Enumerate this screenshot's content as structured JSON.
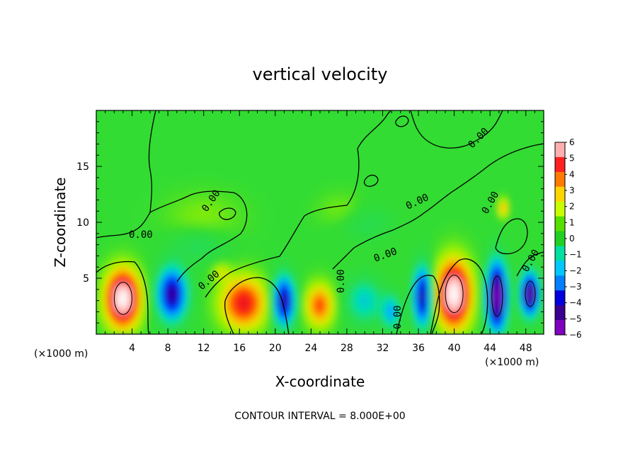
{
  "chart_data": {
    "type": "heatmap",
    "title": "vertical velocity",
    "xlabel": "X-coordinate",
    "ylabel": "Z-coordinate",
    "x_unit": "(×1000 m)",
    "x_ticks": [
      "4",
      "8",
      "12",
      "16",
      "20",
      "24",
      "28",
      "32",
      "36",
      "40",
      "44",
      "48"
    ],
    "x_tick_values": [
      4,
      8,
      12,
      16,
      20,
      24,
      28,
      32,
      36,
      40,
      44,
      48
    ],
    "y_ticks": [
      "5",
      "10",
      "15"
    ],
    "y_tick_values": [
      5,
      10,
      15
    ],
    "xlim": [
      0,
      50
    ],
    "ylim": [
      0,
      20
    ],
    "colorbar": {
      "labels": [
        "6",
        "5",
        "4",
        "3",
        "2",
        "1",
        "0",
        "−1",
        "−2",
        "−3",
        "−4",
        "−5",
        "−6"
      ],
      "min": -6,
      "max": 6,
      "colors": [
        "#ffb0b0",
        "#ff2020",
        "#ff7a00",
        "#ffd500",
        "#c8ff00",
        "#55e000",
        "#22d022",
        "#00e0a0",
        "#00c8ff",
        "#0080ff",
        "#0000dd",
        "#3a0090",
        "#8000c0"
      ]
    },
    "contour_labels": [
      "0.00",
      "0.00",
      "0.00",
      "0.00",
      "0.00",
      "0.00",
      "0.00",
      "0.00",
      "0.00",
      "0.00"
    ],
    "features": [
      {
        "x": 3.0,
        "z": 3.2,
        "w": 8,
        "rx": 1.8,
        "rz": 2.4
      },
      {
        "x": 16.5,
        "z": 2.8,
        "w": 5,
        "rx": 2.4,
        "rz": 2.2
      },
      {
        "x": 25.0,
        "z": 2.6,
        "w": 4,
        "rx": 1.5,
        "rz": 1.8
      },
      {
        "x": 40.0,
        "z": 3.6,
        "w": 8,
        "rx": 1.8,
        "rz": 2.8
      },
      {
        "x": 45.5,
        "z": 11.3,
        "w": 3,
        "rx": 0.5,
        "rz": 0.8
      },
      {
        "x": 14.0,
        "z": 5.6,
        "w": 1.5,
        "rx": 1.0,
        "rz": 0.8
      },
      {
        "x": 12.0,
        "z": 10.5,
        "w": 0.8,
        "rx": 4.0,
        "rz": 2.0
      },
      {
        "x": 27.5,
        "z": 11.0,
        "w": 0.8,
        "rx": 2.5,
        "rz": 1.5
      },
      {
        "x": 8.5,
        "z": 3.6,
        "w": -6,
        "rx": 1.6,
        "rz": 2.3
      },
      {
        "x": 21.0,
        "z": 3.0,
        "w": -6,
        "rx": 1.2,
        "rz": 2.2
      },
      {
        "x": 36.5,
        "z": 3.4,
        "w": -6,
        "rx": 1.0,
        "rz": 2.6
      },
      {
        "x": 44.8,
        "z": 3.4,
        "w": -8,
        "rx": 1.1,
        "rz": 3.0
      },
      {
        "x": 48.5,
        "z": 3.6,
        "w": -7,
        "rx": 1.0,
        "rz": 1.9
      },
      {
        "x": 30.0,
        "z": 3.0,
        "w": -2.5,
        "rx": 2.0,
        "rz": 2.0
      },
      {
        "x": 33.0,
        "z": 2.0,
        "w": -3,
        "rx": 1.0,
        "rz": 1.5
      },
      {
        "x": 11.5,
        "z": 8.0,
        "w": -1.2,
        "rx": 3.0,
        "rz": 1.5
      },
      {
        "x": 30.0,
        "z": 10.0,
        "w": -1.0,
        "rx": 3.0,
        "rz": 1.5
      }
    ]
  },
  "footer": {
    "contour_interval": "CONTOUR INTERVAL = 8.000E+00"
  }
}
